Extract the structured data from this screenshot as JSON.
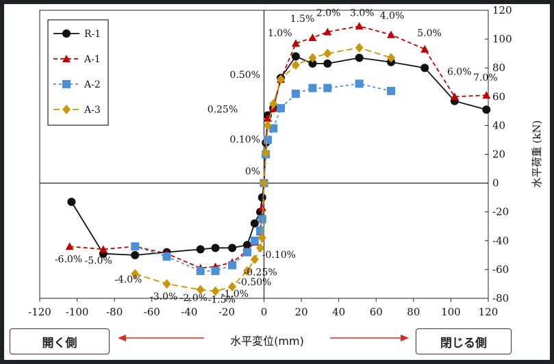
{
  "chart_data": {
    "type": "line",
    "xlabel": "水平変位(mm)",
    "ylabel": "水平荷重 (kN)",
    "xlim": [
      -120,
      120
    ],
    "ylim": [
      -80,
      120
    ],
    "xticks": [
      -120,
      -100,
      -80,
      -60,
      -40,
      -20,
      0,
      20,
      40,
      60,
      80,
      100,
      120
    ],
    "yticks": [
      -80,
      -60,
      -40,
      -20,
      0,
      20,
      40,
      60,
      80,
      100,
      120
    ],
    "legend_position": "top-left",
    "series": [
      {
        "name": "R-1",
        "color": "#111111",
        "dash": "",
        "marker": "circle",
        "x": [
          -103,
          -86,
          -69,
          -52,
          -34,
          -26,
          -17,
          -9,
          -5,
          -2,
          -1,
          0,
          1,
          2,
          5,
          9,
          17,
          26,
          34,
          51,
          68,
          86,
          102,
          119
        ],
        "y": [
          -13,
          -49,
          -50,
          -48,
          -46,
          -45,
          -45,
          -43,
          -28,
          -20,
          -10,
          0,
          28,
          47,
          52,
          73,
          88,
          83,
          83,
          87,
          84,
          80,
          57,
          51
        ]
      },
      {
        "name": "A-1",
        "color": "#c00000",
        "dash": "6 4",
        "marker": "triangle",
        "x": [
          -104,
          -86,
          -69,
          -52,
          -34,
          -26,
          -17,
          -9,
          -5,
          -2,
          -1,
          0,
          1,
          2,
          5,
          9,
          17,
          26,
          34,
          51,
          68,
          86,
          102,
          119
        ],
        "y": [
          -44,
          -46,
          -44,
          -49,
          -59,
          -58,
          -55,
          -47,
          -41,
          -34,
          -17,
          0,
          20,
          45,
          52,
          72,
          97,
          101,
          105,
          109,
          103,
          93,
          60,
          61
        ]
      },
      {
        "name": "A-2",
        "color": "#4d8fd6",
        "dash": "4 4",
        "marker": "square",
        "x": [
          -69,
          -52,
          -34,
          -26,
          -17,
          -9,
          -5,
          -2,
          -1,
          0,
          1,
          2,
          5,
          9,
          17,
          26,
          34,
          51,
          68
        ],
        "y": [
          -44,
          -51,
          -61,
          -61,
          -57,
          -48,
          -40,
          -33,
          -25,
          0,
          20,
          30,
          38,
          52,
          62,
          66,
          66,
          69,
          64
        ]
      },
      {
        "name": "A-3",
        "color": "#c9960c",
        "dash": "9 5",
        "marker": "diamond",
        "x": [
          -69,
          -52,
          -34,
          -26,
          -17,
          -9,
          -5,
          -2,
          -1,
          0,
          1,
          2,
          5,
          9,
          17,
          26,
          34,
          51,
          68
        ],
        "y": [
          -63,
          -70,
          -74,
          -75,
          -72,
          -61,
          -53,
          -45,
          -38,
          0,
          21,
          40,
          55,
          72,
          82,
          87,
          90,
          94,
          87
        ]
      }
    ],
    "annotations_pos": [
      {
        "text": "0%",
        "x": -2,
        "y": 6,
        "anchor": "end"
      },
      {
        "text": "0.10%",
        "x": -2,
        "y": 28,
        "anchor": "end"
      },
      {
        "text": "0.25%",
        "x": -14,
        "y": 49,
        "anchor": "end"
      },
      {
        "text": "0.50%",
        "x": -2,
        "y": 73,
        "anchor": "end"
      },
      {
        "text": "1.0%",
        "x": 2,
        "y": 102,
        "anchor": "start"
      },
      {
        "text": "1.5%",
        "x": 14,
        "y": 112,
        "anchor": "start"
      },
      {
        "text": "2.0%",
        "x": 28,
        "y": 116,
        "anchor": "start"
      },
      {
        "text": "3.0%",
        "x": 46,
        "y": 116,
        "anchor": "start"
      },
      {
        "text": "4.0%",
        "x": 62,
        "y": 114,
        "anchor": "start"
      },
      {
        "text": "5.0%",
        "x": 82,
        "y": 102,
        "anchor": "start"
      },
      {
        "text": "6.0%",
        "x": 98,
        "y": 75,
        "anchor": "start"
      },
      {
        "text": "7.0%",
        "x": 112,
        "y": 71,
        "anchor": "start"
      }
    ],
    "annotations_neg": [
      {
        "text": "-6.0%",
        "x": -112,
        "y": -55,
        "anchor": "start"
      },
      {
        "text": "-5.0%",
        "x": -96,
        "y": -56,
        "anchor": "start"
      },
      {
        "text": "-4.0%",
        "x": -80,
        "y": -69,
        "anchor": "start"
      },
      {
        "text": "-3.0%",
        "x": -61,
        "y": -81,
        "anchor": "start"
      },
      {
        "text": "-2.0%",
        "x": -45,
        "y": -82,
        "anchor": "start"
      },
      {
        "text": "-1.5%",
        "x": -30,
        "y": -83,
        "anchor": "start"
      },
      {
        "text": "-1.0%",
        "x": -23,
        "y": -79,
        "anchor": "start"
      },
      {
        "text": "-0.50%",
        "x": -14,
        "y": -71,
        "anchor": "start"
      },
      {
        "text": "-0.25%",
        "x": -11,
        "y": -64,
        "anchor": "start"
      },
      {
        "text": "-0.10%",
        "x": -1,
        "y": -52,
        "anchor": "start"
      }
    ]
  },
  "buttons": {
    "open": "開く側",
    "close": "閉じる側"
  },
  "arrow_color": "#e0261f"
}
